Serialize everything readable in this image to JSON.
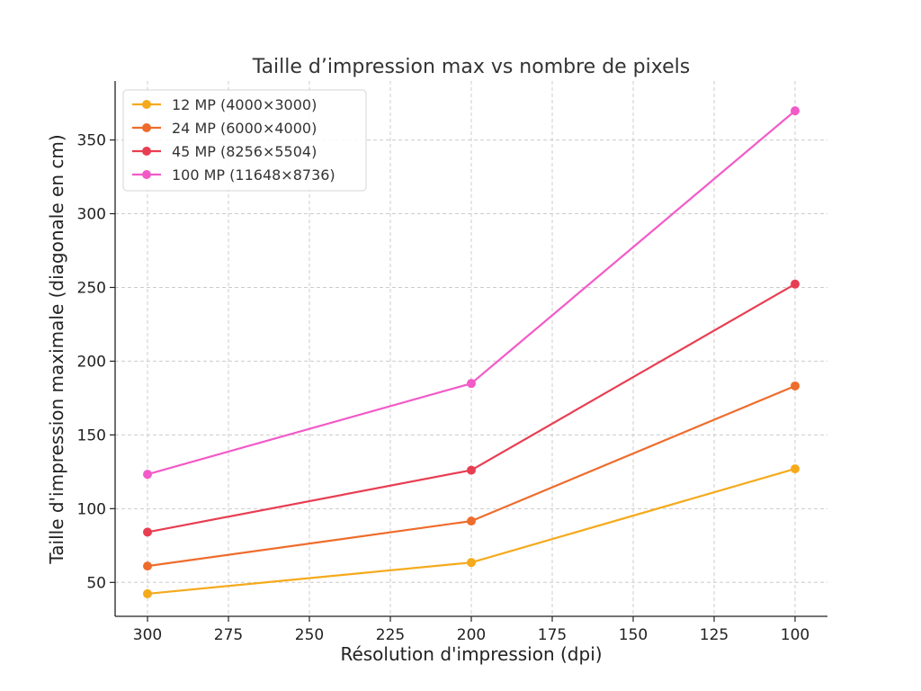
{
  "chart_data": {
    "type": "line",
    "title": "Taille d’impression max vs nombre de pixels",
    "xlabel": "Résolution d'impression (dpi)",
    "ylabel": "Taille d'impression maximale (diagonale en cm)",
    "x": [
      300,
      200,
      100
    ],
    "xlim": [
      310,
      90
    ],
    "x_reversed": true,
    "ylim": [
      27,
      390
    ],
    "xticks": [
      300,
      275,
      250,
      225,
      200,
      175,
      150,
      125,
      100
    ],
    "yticks": [
      50,
      100,
      150,
      200,
      250,
      300,
      350
    ],
    "grid": true,
    "legend_position": "top-left",
    "series": [
      {
        "name": "12 MP (4000×3000)",
        "color": "#f5aa1c",
        "values": [
          42.3,
          63.5,
          127.0
        ]
      },
      {
        "name": "24 MP (6000×4000)",
        "color": "#ee6c2c",
        "values": [
          61.1,
          91.6,
          183.2
        ]
      },
      {
        "name": "45 MP (8256×5504)",
        "color": "#e83e52",
        "values": [
          84.1,
          126.1,
          252.3
        ]
      },
      {
        "name": "100 MP (11648×8736)",
        "color": "#f25ac8",
        "values": [
          123.3,
          184.9,
          369.8
        ]
      }
    ]
  }
}
